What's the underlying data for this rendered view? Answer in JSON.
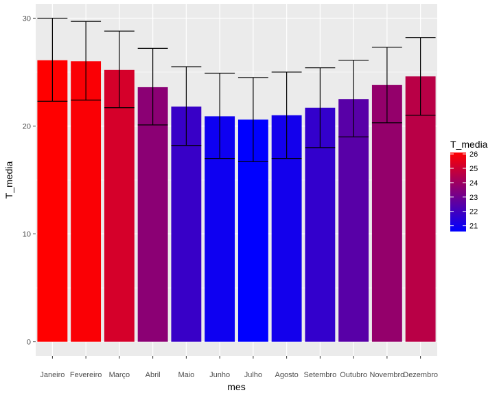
{
  "chart_data": {
    "type": "bar",
    "title": "",
    "xlabel": "mes",
    "ylabel": "T_media",
    "categories": [
      "Janeiro",
      "Fevereiro",
      "Março",
      "Abril",
      "Maio",
      "Junho",
      "Julho",
      "Agosto",
      "Setembro",
      "Outubro",
      "Novembro",
      "Dezembro"
    ],
    "values": [
      26.1,
      26.0,
      25.2,
      23.6,
      21.8,
      20.9,
      20.6,
      21.0,
      21.7,
      22.5,
      23.8,
      24.6
    ],
    "error_low": [
      22.3,
      22.4,
      21.7,
      20.1,
      18.2,
      17.0,
      16.7,
      17.0,
      18.0,
      19.0,
      20.3,
      21.0
    ],
    "error_high": [
      30.0,
      29.7,
      28.8,
      27.2,
      25.5,
      24.9,
      24.5,
      25.0,
      25.4,
      26.1,
      27.3,
      28.2
    ],
    "ylim": [
      -1.3,
      31.3
    ],
    "y_ticks": [
      0,
      10,
      20,
      30
    ],
    "grid": true,
    "legend": {
      "title": "T_media",
      "position": "right",
      "type": "colorbar",
      "ticks": [
        21,
        22,
        23,
        24,
        25,
        26
      ],
      "low_color": "#0000ff",
      "high_color": "#ff0000"
    },
    "colors": {
      "panel_background": "#ebebeb",
      "gridline": "#ffffff",
      "error_bar": "#000000"
    }
  }
}
